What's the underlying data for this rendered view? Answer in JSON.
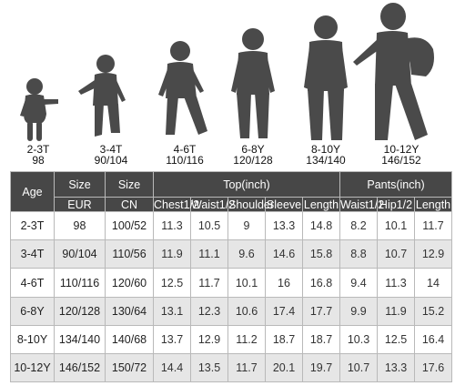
{
  "figures": [
    {
      "age": "2-3T",
      "size": "98"
    },
    {
      "age": "3-4T",
      "size": "90/104"
    },
    {
      "age": "4-6T",
      "size": "110/116"
    },
    {
      "age": "6-8Y",
      "size": "120/128"
    },
    {
      "age": "8-10Y",
      "size": "134/140"
    },
    {
      "age": "10-12Y",
      "size": "146/152"
    }
  ],
  "table": {
    "headers": {
      "age": "Age",
      "size_eur": "Size",
      "size_cn": "Size",
      "top": "Top(inch)",
      "pants": "Pants(inch)"
    },
    "subheaders": {
      "eur": "EUR",
      "cn": "CN",
      "chest": "Chest1/2",
      "waist_top": "Waist1/2",
      "shoulder": "Shoulder",
      "sleeve": "Sleeve",
      "length_top": "Length",
      "waist_pants": "Waist1/2",
      "hip": "Hip1/2",
      "length_pants": "Length"
    },
    "rows": [
      [
        "2-3T",
        "98",
        "100/52",
        "11.3",
        "10.5",
        "9",
        "13.3",
        "14.8",
        "8.2",
        "10.1",
        "11.7"
      ],
      [
        "3-4T",
        "90/104",
        "110/56",
        "11.9",
        "11.1",
        "9.6",
        "14.6",
        "15.8",
        "8.8",
        "10.7",
        "12.9"
      ],
      [
        "4-6T",
        "110/116",
        "120/60",
        "12.5",
        "11.7",
        "10.1",
        "16",
        "16.8",
        "9.4",
        "11.3",
        "14"
      ],
      [
        "6-8Y",
        "120/128",
        "130/64",
        "13.1",
        "12.3",
        "10.6",
        "17.4",
        "17.7",
        "9.9",
        "11.9",
        "15.2"
      ],
      [
        "8-10Y",
        "134/140",
        "140/68",
        "13.7",
        "12.9",
        "11.2",
        "18.7",
        "18.7",
        "10.3",
        "12.5",
        "16.4"
      ],
      [
        "10-12Y",
        "146/152",
        "150/72",
        "14.4",
        "13.5",
        "11.7",
        "20.1",
        "19.7",
        "10.7",
        "13.3",
        "17.6"
      ]
    ]
  }
}
